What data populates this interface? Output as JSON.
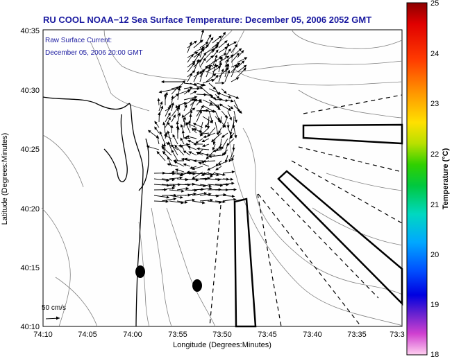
{
  "title": "RU COOL  NOAA−12  Sea Surface Temperature:  December 05, 2006 2052 GMT",
  "subtitle": {
    "line1": "Raw Surface Current:",
    "line2": "December 05, 2006 20:00 GMT"
  },
  "axes": {
    "xlabel": "Longitude (Degrees:Minutes)",
    "ylabel": "Latitude (Degrees:Minutes)",
    "xticks": [
      "74:10",
      "74:05",
      "74:00",
      "73:55",
      "73:50",
      "73:45",
      "73:40",
      "73:35",
      "73:3"
    ],
    "yticks": [
      "40:35",
      "40:30",
      "40:25",
      "40:20",
      "40:15",
      "40:10"
    ]
  },
  "scale_label": "50 cm/s",
  "colorbar": {
    "label": "Temperature (°C)",
    "ticks": [
      "25",
      "24",
      "23",
      "22",
      "21",
      "20",
      "19",
      "18"
    ],
    "min": 18,
    "max": 25
  },
  "colors": {
    "title": "#1a1aa0",
    "contour": "#808080",
    "coast": "#000000",
    "arrows": "#000000"
  },
  "chart_data": {
    "type": "map",
    "title": "RU COOL  NOAA−12  Sea Surface Temperature:  December 05, 2006 2052 GMT",
    "xlabel": "Longitude (Degrees:Minutes)",
    "ylabel": "Latitude (Degrees:Minutes)",
    "xlim": [
      "74:10",
      "73:30"
    ],
    "ylim": [
      "40:10",
      "40:35"
    ],
    "colorbar_range_C": [
      18,
      25
    ],
    "sst_field": "no SST pixels shown (cloud/blank)",
    "overlays": [
      "raw surface current vectors",
      "bathymetry contours",
      "coastline",
      "shipping lanes",
      "disposal sites"
    ],
    "vector_scale": "50 cm/s"
  }
}
